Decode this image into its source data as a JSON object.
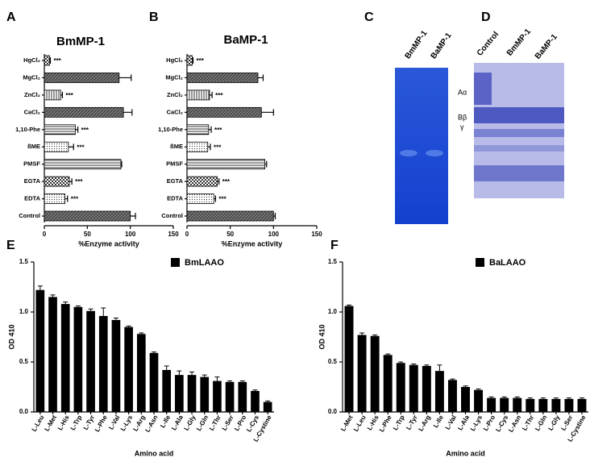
{
  "chart_data": [
    {
      "panel": "A",
      "type": "bar",
      "orientation": "horizontal",
      "title": "BmMP-1",
      "xlabel": "%Enzyme activity",
      "categories": [
        "HgCl₂",
        "MgCl₂",
        "ZnCl₂",
        "CaCl₂",
        "1,10-Phe",
        "ßME",
        "PMSF",
        "EGTA",
        "EDTA",
        "Control"
      ],
      "values": [
        6,
        87,
        19,
        92,
        36,
        28,
        89,
        29,
        24,
        100
      ],
      "errors": [
        1,
        14,
        2,
        10,
        3,
        6,
        1,
        3,
        3,
        6
      ],
      "annotations": [
        "***",
        null,
        "***",
        null,
        "***",
        "***",
        null,
        "***",
        "***",
        null
      ],
      "xlim": [
        0,
        150
      ],
      "xticks": [
        0,
        50,
        100,
        150
      ]
    },
    {
      "panel": "B",
      "type": "bar",
      "orientation": "horizontal",
      "title": "BaMP-1",
      "xlabel": "%Enzyme activity",
      "categories": [
        "HgCl₂",
        "MgCl₂",
        "ZnCl₂",
        "CaCl₂",
        "1,10-Phe",
        "ßME",
        "PMSF",
        "EGTA",
        "EDTA",
        "Control"
      ],
      "values": [
        6,
        82,
        26,
        86,
        25,
        24,
        90,
        35,
        31,
        100
      ],
      "errors": [
        1,
        6,
        3,
        14,
        3,
        3,
        2,
        2,
        2,
        2
      ],
      "annotations": [
        "***",
        null,
        "***",
        null,
        "***",
        "***",
        null,
        "***",
        "***",
        null
      ],
      "xlim": [
        0,
        150
      ],
      "xticks": [
        0,
        50,
        100,
        150
      ]
    },
    {
      "panel": "E",
      "type": "bar",
      "orientation": "vertical",
      "xlabel": "Amino acid",
      "ylabel": "OD 410",
      "categories": [
        "L-Leu",
        "L-Met",
        "L-His",
        "L-Trp",
        "L-Tyr",
        "L-Phe",
        "L-Val",
        "L-Lys",
        "L-Arg",
        "L-Asn",
        "L-Ile",
        "L-Ala",
        "L-Gly",
        "L-Gln",
        "L-Thr",
        "L-Ser",
        "L-Pro",
        "L-Cys",
        "L-Cystine"
      ],
      "series": [
        {
          "name": "BmLAAO",
          "color": "#000000",
          "values": [
            1.22,
            1.15,
            1.08,
            1.05,
            1.01,
            0.96,
            0.92,
            0.85,
            0.78,
            0.59,
            0.42,
            0.37,
            0.37,
            0.35,
            0.31,
            0.3,
            0.3,
            0.21,
            0.1
          ],
          "errors": [
            0.04,
            0.02,
            0.02,
            0.01,
            0.02,
            0.08,
            0.02,
            0.01,
            0.01,
            0.01,
            0.04,
            0.04,
            0.03,
            0.02,
            0.04,
            0.01,
            0.01,
            0.01,
            0.01
          ]
        }
      ],
      "ylim": [
        0,
        1.5
      ],
      "yticks": [
        {
          "value": 0,
          "label": "0.0"
        },
        0.5,
        {
          "value": 1,
          "label": "1.0"
        },
        1.5
      ]
    },
    {
      "panel": "F",
      "type": "bar",
      "orientation": "vertical",
      "xlabel": "Amino acid",
      "ylabel": "OD 410",
      "categories": [
        "L-Met",
        "L-Leu",
        "L-His",
        "L-Phe",
        "L-Trp",
        "L-Tyr",
        "L-Arg",
        "L-Ile",
        "L-Val",
        "L-Ala",
        "L-Lys",
        "L-Pro",
        "L-Cys",
        "L-Asn",
        "L-Thr",
        "L-Gln",
        "L-Gly",
        "L-Ser",
        "L-Cystine"
      ],
      "series": [
        {
          "name": "BaLAAO",
          "color": "#000000",
          "values": [
            1.06,
            0.77,
            0.76,
            0.57,
            0.49,
            0.47,
            0.46,
            0.41,
            0.32,
            0.25,
            0.22,
            0.14,
            0.14,
            0.14,
            0.13,
            0.13,
            0.13,
            0.13,
            0.13
          ],
          "errors": [
            0.01,
            0.02,
            0.01,
            0.01,
            0.01,
            0.01,
            0.01,
            0.06,
            0.01,
            0.01,
            0.01,
            0.01,
            0.01,
            0.01,
            0.01,
            0.01,
            0.01,
            0.01,
            0.01
          ]
        }
      ],
      "ylim": [
        0,
        1.5
      ],
      "yticks": [
        {
          "value": 0,
          "label": "0.0"
        },
        0.5,
        {
          "value": 1,
          "label": "1.0"
        },
        1.5
      ]
    }
  ],
  "gels": [
    {
      "panel": "C",
      "lanes": [
        "BmMP-1",
        "BaMP-1"
      ]
    },
    {
      "panel": "D",
      "lanes": [
        "Control",
        "BmMP-1",
        "BaMP-1"
      ],
      "bands": [
        "Aα",
        "Bβ",
        "γ"
      ]
    }
  ]
}
